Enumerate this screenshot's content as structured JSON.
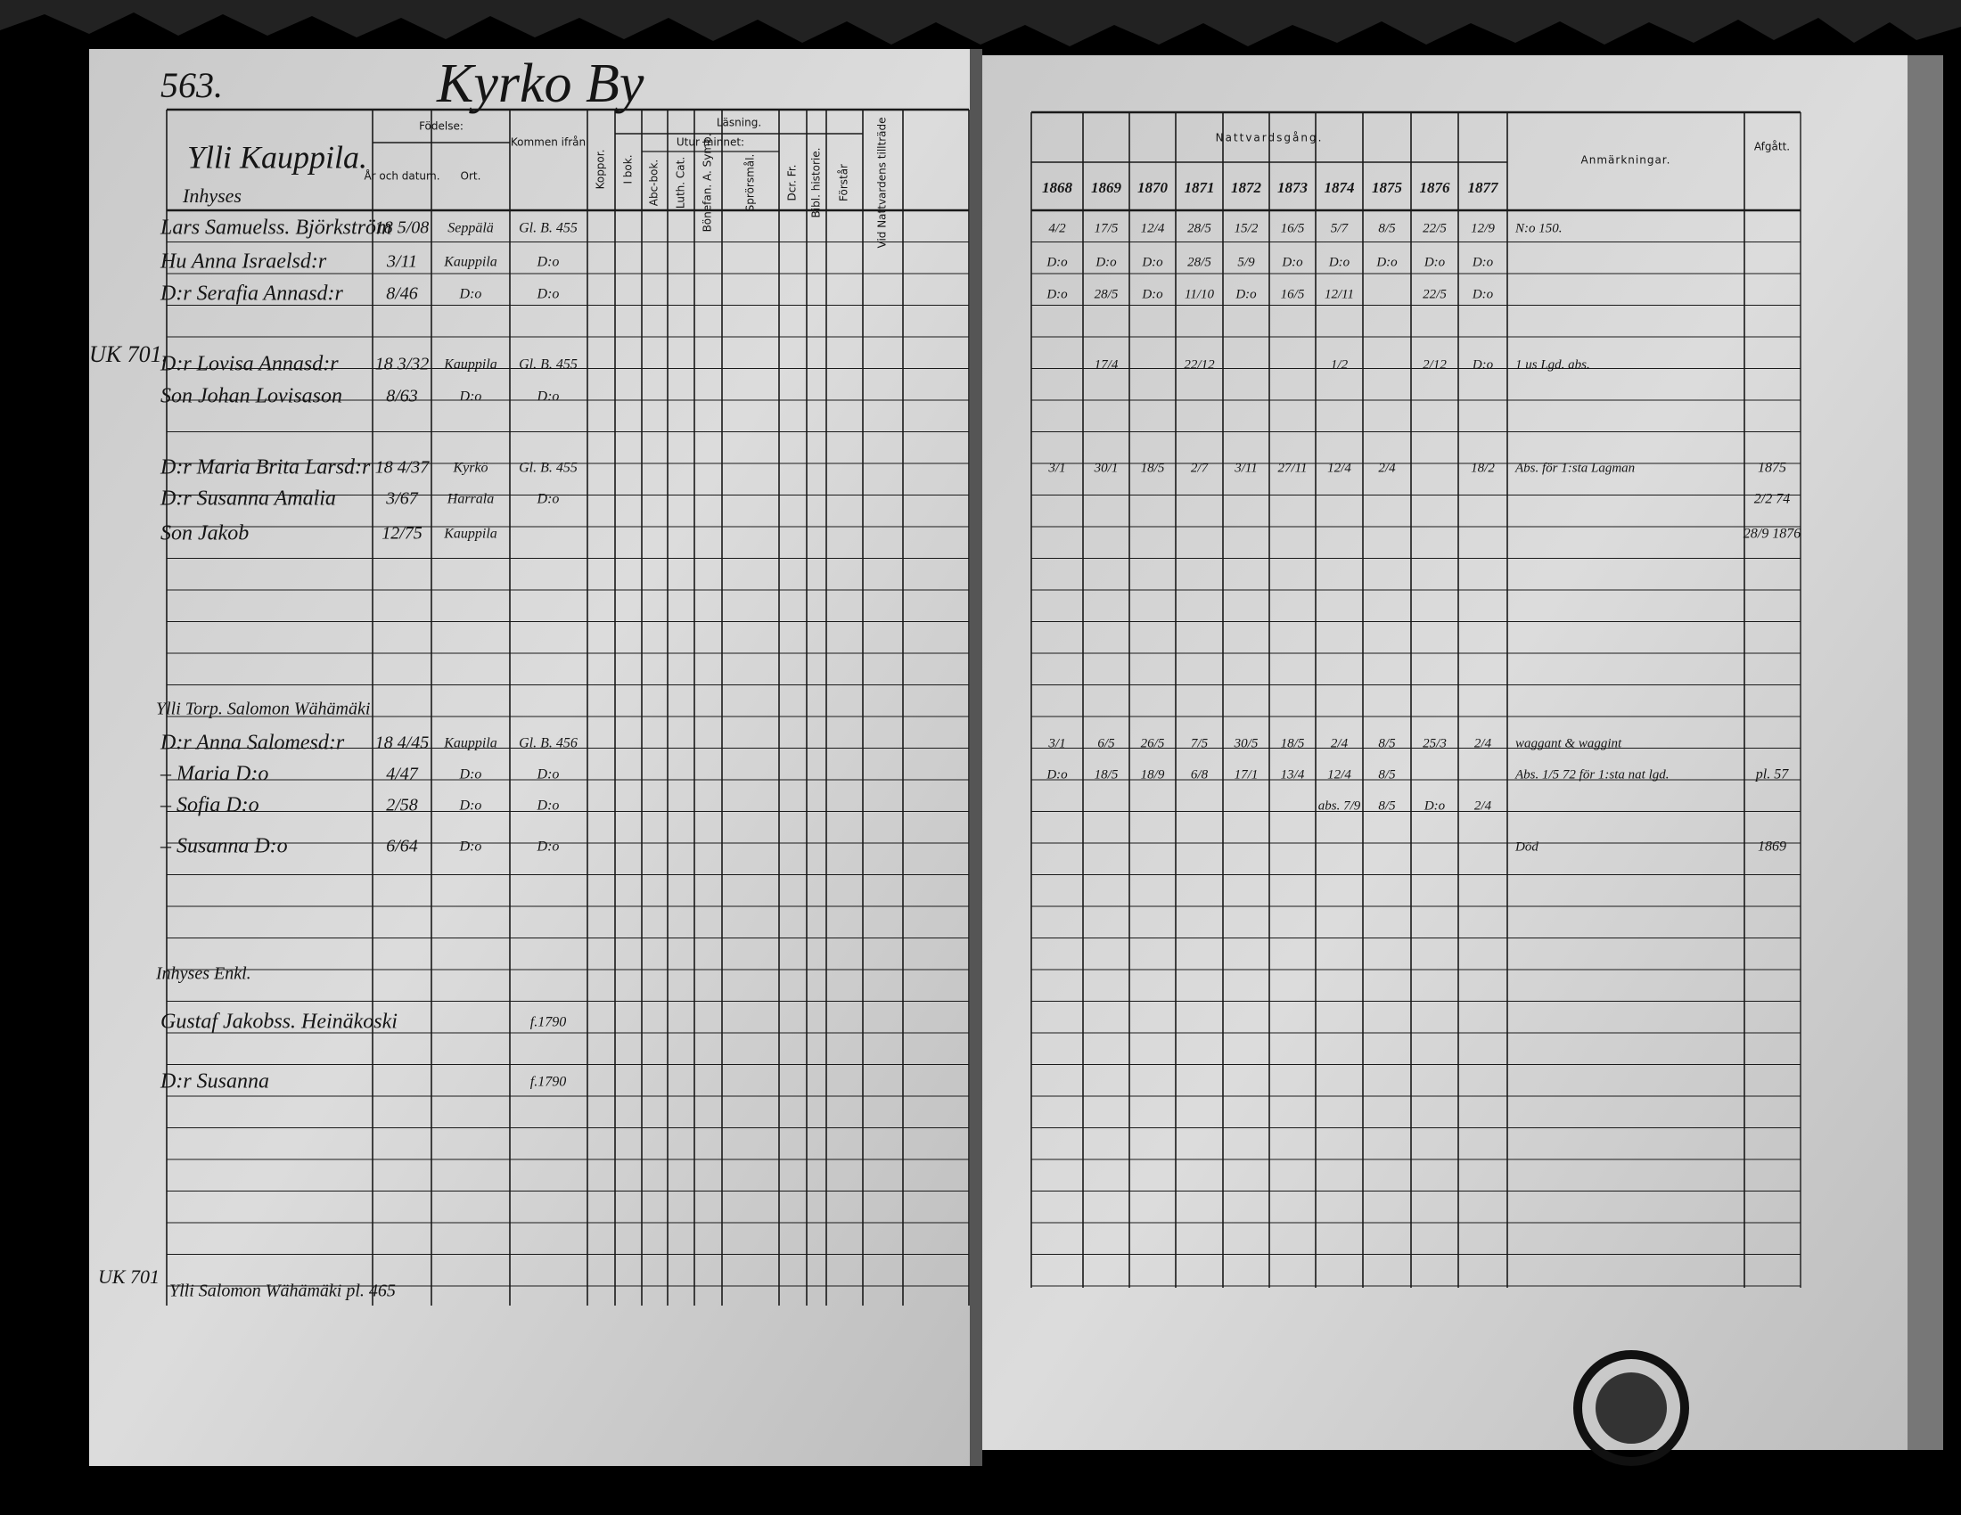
{
  "header": {
    "page_number": "563.",
    "village": "Kyrko By",
    "farm": "Ylli Kauppila.",
    "section": "Inhyses"
  },
  "left_columns": {
    "birth": "Födelse:",
    "date": "År och datum.",
    "place": "Ort.",
    "from": "Kommen ifrån",
    "smallpox": "Koppor.",
    "reading": "Läsning.",
    "memory": "Utur minnet:",
    "subjects": [
      "I bok.",
      "Abc-bok.",
      "Luth. Cat.",
      "Bönefan. A. Symb.",
      "Sprörsmål.",
      "Dcr. Fr.",
      "Bibl. historie.",
      "Förstår",
      "Vid Nattvardens tillträde"
    ]
  },
  "right_columns": {
    "communion": "Nattvardsgång.",
    "years": [
      "1868",
      "1869",
      "1870",
      "1871",
      "1872",
      "1873",
      "1874",
      "1875",
      "1876",
      "1877"
    ],
    "remarks": "Anmärkningar.",
    "departed": "Afgått."
  },
  "entries": [
    {
      "name": "Lars Samuelss. Björkström",
      "date": "18 5/08",
      "place": "Seppälä",
      "from": "Gl. B. 455",
      "communion": [
        "4/2",
        "17/5",
        "12/4",
        "28/5",
        "15/2",
        "16/5",
        "5/7",
        "8/5",
        "22/5",
        "12/9"
      ],
      "remark": "N:o 150."
    },
    {
      "name": "Hu Anna Israelsd:r",
      "date": "3/11",
      "place": "Kauppila",
      "from": "D:o",
      "communion": [
        "D:o",
        "D:o",
        "D:o",
        "28/5",
        "5/9",
        "D:o",
        "D:o",
        "D:o",
        "D:o",
        "D:o"
      ]
    },
    {
      "name": "D:r Serafia Annasd:r",
      "date": "8/46",
      "place": "D:o",
      "from": "D:o",
      "communion": [
        "D:o",
        "28/5",
        "D:o",
        "11/10",
        "D:o",
        "16/5",
        "12/11",
        null,
        "22/5",
        "D:o"
      ]
    },
    {
      "name": "D:r Lovisa Annasd:r",
      "date": "18 3/32",
      "place": "Kauppila",
      "from": "Gl. B. 455",
      "communion": [
        null,
        "17/4",
        null,
        "22/12",
        null,
        null,
        "1/2",
        null,
        "2/12",
        "D:o"
      ],
      "remark": "1 us Lgd. abs."
    },
    {
      "name": "Son Johan Lovisason",
      "date": "8/63",
      "place": "D:o",
      "from": "D:o"
    },
    {
      "name": "D:r Maria Brita Larsd:r",
      "date": "18 4/37",
      "place": "Kyrkö",
      "from": "Gl. B. 455",
      "communion": [
        "3/1",
        "30/1",
        "18/5",
        "2/7",
        "3/11",
        "27/11",
        "12/4",
        "2/4",
        null,
        "18/2"
      ],
      "remark": "Abs. för 1:sta Lagman",
      "departed": "1875"
    },
    {
      "name": "D:r Susanna Amalia",
      "date": "3/67",
      "place": "Harrala",
      "from": "D:o",
      "departed": "2/2 74"
    },
    {
      "name": "Son Jakob",
      "date": "12/75",
      "place": "Kauppila",
      "departed": "28/9 1876"
    },
    {
      "group": "Ylli Torp. Salomon Wähämäki"
    },
    {
      "name": "D:r Anna Salomesd:r",
      "date": "18 4/45",
      "place": "Kauppila",
      "from": "Gl. B. 456",
      "communion": [
        "3/1",
        "6/5",
        "26/5",
        "7/5",
        "30/5",
        "18/5",
        "2/4",
        "8/5",
        "25/3",
        "2/4"
      ],
      "remark": "waggant & waggint"
    },
    {
      "name": "– Maria D:o",
      "date": "4/47",
      "place": "D:o",
      "from": "D:o",
      "communion": [
        "D:o",
        "18/5",
        "18/9",
        "6/8",
        "17/1",
        "13/4",
        "12/4",
        "8/5",
        null,
        null
      ],
      "remark": "Abs. 1/5 72 för 1:sta nat lgd.",
      "departed": "pl. 57"
    },
    {
      "name": "– Sofia D:o",
      "date": "2/58",
      "place": "D:o",
      "from": "D:o",
      "communion": [
        null,
        null,
        null,
        null,
        null,
        null,
        "abs. 7/9",
        "8/5",
        "D:o",
        "2/4"
      ]
    },
    {
      "name": "– Susanna D:o",
      "date": "6/64",
      "place": "D:o",
      "from": "D:o",
      "remark": "Död",
      "departed": "1869"
    },
    {
      "group": "Inhyses Enkl."
    },
    {
      "name": "Gustaf Jakobss. Heinäkoski",
      "from": "f.1790"
    },
    {
      "name": "D:r Susanna",
      "from": "f.1790"
    }
  ],
  "footer": {
    "note": "Ylli Salomon Wähämäki pl. 465",
    "margin_top": "UK 701.",
    "margin_bottom": "UK 701"
  }
}
